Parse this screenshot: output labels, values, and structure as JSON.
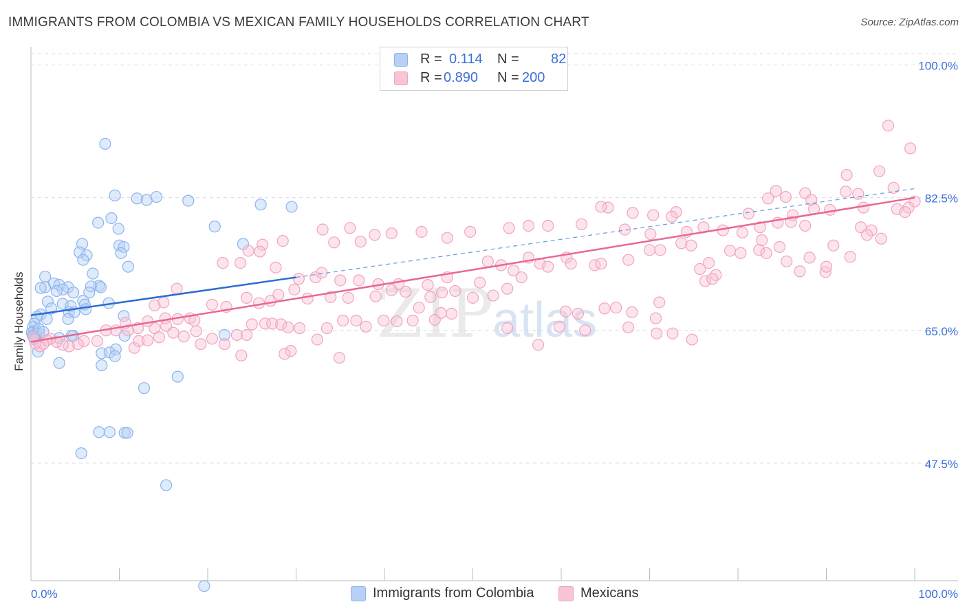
{
  "title": "IMMIGRANTS FROM COLOMBIA VS MEXICAN FAMILY HOUSEHOLDS CORRELATION CHART",
  "source": "Source: ZipAtlas.com",
  "watermark": {
    "zip": "ZIP",
    "atlas": "atlas"
  },
  "legend": {
    "r_label": "R =",
    "n_label": "N =",
    "series": [
      {
        "name": "Immigrants from Colombia",
        "r": "0.114",
        "n": "82",
        "color": "#8ab4f0",
        "fill": "#b8d0f5",
        "line": "#2a6dd3"
      },
      {
        "name": "Mexicans",
        "r": "0.890",
        "n": "200",
        "color": "#f2a3bf",
        "fill": "#f8c4d6",
        "line": "#e8688f"
      }
    ]
  },
  "chart_data": {
    "type": "scatter",
    "title": "IMMIGRANTS FROM COLOMBIA VS MEXICAN FAMILY HOUSEHOLDS CORRELATION CHART",
    "xlabel": "",
    "ylabel": "Family Households",
    "xlim": [
      0,
      100
    ],
    "ylim": [
      32,
      101.5
    ],
    "x_tick_labels": [
      "0.0%",
      "100.0%"
    ],
    "y_ticks": [
      47.5,
      65.0,
      82.5,
      100.0
    ],
    "y_tick_labels": [
      "47.5%",
      "65.0%",
      "82.5%",
      "100.0%"
    ],
    "grid": true,
    "series": [
      {
        "name": "Immigrants from Colombia",
        "r": 0.114,
        "n": 82,
        "trend": {
          "x0": 0,
          "y0": 67.0,
          "x1": 30,
          "y1": 72.0,
          "dash_x1": 100,
          "dash_y1": 83.7
        },
        "points": [
          [
            8.4,
            89.6
          ],
          [
            9.5,
            82.8
          ],
          [
            12.0,
            82.4
          ],
          [
            13.1,
            82.2
          ],
          [
            14.2,
            82.6
          ],
          [
            17.8,
            82.1
          ],
          [
            26.0,
            81.6
          ],
          [
            29.5,
            81.3
          ],
          [
            20.8,
            78.7
          ],
          [
            9.1,
            79.8
          ],
          [
            7.6,
            79.2
          ],
          [
            9.9,
            78.4
          ],
          [
            5.8,
            76.4
          ],
          [
            10.0,
            76.2
          ],
          [
            10.5,
            76.0
          ],
          [
            5.5,
            75.3
          ],
          [
            10.2,
            75.2
          ],
          [
            6.3,
            74.9
          ],
          [
            5.9,
            74.3
          ],
          [
            11.0,
            73.4
          ],
          [
            24.0,
            76.4
          ],
          [
            7.0,
            72.5
          ],
          [
            1.6,
            72.1
          ],
          [
            2.6,
            71.2
          ],
          [
            3.2,
            71.0
          ],
          [
            7.7,
            70.9
          ],
          [
            6.8,
            70.8
          ],
          [
            1.6,
            70.7
          ],
          [
            1.1,
            70.6
          ],
          [
            4.2,
            70.7
          ],
          [
            3.6,
            70.4
          ],
          [
            7.9,
            70.7
          ],
          [
            2.9,
            70.2
          ],
          [
            4.8,
            70.0
          ],
          [
            6.6,
            70.0
          ],
          [
            5.9,
            68.9
          ],
          [
            1.9,
            68.8
          ],
          [
            3.6,
            68.5
          ],
          [
            6.1,
            68.4
          ],
          [
            4.5,
            68.2
          ],
          [
            2.3,
            67.9
          ],
          [
            6.2,
            67.8
          ],
          [
            4.3,
            67.4
          ],
          [
            1.1,
            67.1
          ],
          [
            0.7,
            66.8
          ],
          [
            4.9,
            67.4
          ],
          [
            8.8,
            68.6
          ],
          [
            1.8,
            66.5
          ],
          [
            4.2,
            66.5
          ],
          [
            10.5,
            66.9
          ],
          [
            0.4,
            65.9
          ],
          [
            0.2,
            65.4
          ],
          [
            0.3,
            64.9
          ],
          [
            0.1,
            64.7
          ],
          [
            0.6,
            64.6
          ],
          [
            0.9,
            64.6
          ],
          [
            0.2,
            64.3
          ],
          [
            4.8,
            64.3
          ],
          [
            0.5,
            64.0
          ],
          [
            3.2,
            64.0
          ],
          [
            4.6,
            64.3
          ],
          [
            21.9,
            64.4
          ],
          [
            10.6,
            64.3
          ],
          [
            0.4,
            63.8
          ],
          [
            0.8,
            62.2
          ],
          [
            9.6,
            62.5
          ],
          [
            8.0,
            62.0
          ],
          [
            8.9,
            62.1
          ],
          [
            9.5,
            61.6
          ],
          [
            3.2,
            60.7
          ],
          [
            8.0,
            60.4
          ],
          [
            16.6,
            58.9
          ],
          [
            12.8,
            57.4
          ],
          [
            7.7,
            51.6
          ],
          [
            8.9,
            51.6
          ],
          [
            10.6,
            51.5
          ],
          [
            10.9,
            51.5
          ],
          [
            5.7,
            48.8
          ],
          [
            15.3,
            44.6
          ],
          [
            19.6,
            31.3
          ],
          [
            0.9,
            65.2
          ],
          [
            1.4,
            64.8
          ]
        ]
      },
      {
        "name": "Mexicans",
        "r": 0.89,
        "n": 200,
        "trend": {
          "x0": 0,
          "y0": 63.5,
          "x1": 100,
          "y1": 82.5
        },
        "points": [
          [
            97.0,
            92.0
          ],
          [
            99.5,
            89.0
          ],
          [
            96.0,
            86.0
          ],
          [
            92.3,
            85.5
          ],
          [
            97.6,
            83.8
          ],
          [
            92.2,
            83.3
          ],
          [
            93.6,
            83.0
          ],
          [
            100.0,
            82.0
          ],
          [
            98.0,
            81.0
          ],
          [
            94.2,
            81.2
          ],
          [
            99.3,
            81.2
          ],
          [
            98.9,
            80.6
          ],
          [
            87.6,
            83.1
          ],
          [
            84.3,
            83.4
          ],
          [
            85.4,
            82.6
          ],
          [
            83.4,
            82.4
          ],
          [
            88.3,
            82.2
          ],
          [
            88.6,
            81.0
          ],
          [
            90.4,
            80.9
          ],
          [
            86.2,
            80.2
          ],
          [
            84.5,
            79.2
          ],
          [
            86.0,
            79.3
          ],
          [
            87.6,
            78.8
          ],
          [
            93.9,
            78.6
          ],
          [
            95.1,
            78.2
          ],
          [
            94.6,
            77.6
          ],
          [
            96.2,
            77.1
          ],
          [
            81.2,
            80.4
          ],
          [
            80.5,
            77.9
          ],
          [
            78.3,
            78.2
          ],
          [
            76.1,
            78.6
          ],
          [
            73.0,
            80.6
          ],
          [
            72.5,
            80.0
          ],
          [
            74.2,
            78.0
          ],
          [
            70.1,
            77.7
          ],
          [
            70.4,
            80.2
          ],
          [
            68.1,
            80.5
          ],
          [
            65.3,
            81.2
          ],
          [
            64.5,
            81.3
          ],
          [
            67.2,
            78.3
          ],
          [
            62.3,
            79.0
          ],
          [
            58.5,
            78.8
          ],
          [
            56.3,
            78.8
          ],
          [
            54.1,
            78.5
          ],
          [
            49.7,
            78.0
          ],
          [
            47.1,
            77.2
          ],
          [
            44.2,
            78.0
          ],
          [
            40.8,
            77.8
          ],
          [
            38.9,
            77.6
          ],
          [
            36.1,
            78.5
          ],
          [
            37.3,
            76.7
          ],
          [
            34.3,
            76.6
          ],
          [
            33.0,
            78.3
          ],
          [
            28.5,
            76.8
          ],
          [
            26.2,
            76.3
          ],
          [
            25.9,
            75.4
          ],
          [
            24.6,
            75.5
          ],
          [
            21.7,
            73.9
          ],
          [
            23.7,
            73.9
          ],
          [
            27.7,
            73.3
          ],
          [
            30.3,
            71.8
          ],
          [
            32.2,
            72.0
          ],
          [
            32.9,
            72.6
          ],
          [
            35.0,
            71.6
          ],
          [
            37.1,
            71.6
          ],
          [
            39.3,
            71.1
          ],
          [
            41.6,
            71.1
          ],
          [
            44.9,
            71.0
          ],
          [
            47.1,
            72.0
          ],
          [
            48.0,
            70.2
          ],
          [
            50.8,
            71.3
          ],
          [
            51.7,
            74.1
          ],
          [
            53.2,
            73.6
          ],
          [
            54.6,
            72.9
          ],
          [
            56.3,
            74.6
          ],
          [
            57.6,
            73.8
          ],
          [
            60.6,
            74.6
          ],
          [
            61.1,
            73.8
          ],
          [
            63.8,
            73.6
          ],
          [
            64.5,
            73.8
          ],
          [
            67.6,
            74.3
          ],
          [
            70.0,
            75.6
          ],
          [
            71.2,
            75.6
          ],
          [
            73.6,
            76.5
          ],
          [
            74.7,
            76.2
          ],
          [
            75.7,
            73.1
          ],
          [
            77.5,
            72.3
          ],
          [
            76.3,
            71.5
          ],
          [
            76.7,
            73.9
          ],
          [
            77.1,
            71.8
          ],
          [
            79.1,
            75.5
          ],
          [
            80.3,
            75.2
          ],
          [
            82.4,
            75.6
          ],
          [
            83.2,
            75.2
          ],
          [
            85.5,
            74.1
          ],
          [
            87.0,
            72.8
          ],
          [
            89.9,
            72.7
          ],
          [
            82.5,
            78.6
          ],
          [
            82.7,
            76.9
          ],
          [
            90.8,
            76.2
          ],
          [
            92.7,
            74.7
          ],
          [
            90.0,
            73.4
          ],
          [
            88.1,
            74.6
          ],
          [
            84.7,
            76.0
          ],
          [
            58.5,
            73.4
          ],
          [
            55.5,
            72.0
          ],
          [
            53.9,
            70.5
          ],
          [
            52.3,
            69.6
          ],
          [
            50.0,
            69.3
          ],
          [
            46.5,
            70.0
          ],
          [
            45.2,
            69.4
          ],
          [
            43.9,
            68.0
          ],
          [
            42.4,
            70.1
          ],
          [
            40.8,
            70.3
          ],
          [
            39.0,
            69.5
          ],
          [
            35.9,
            69.3
          ],
          [
            33.9,
            69.4
          ],
          [
            31.3,
            69.2
          ],
          [
            29.8,
            70.4
          ],
          [
            28.0,
            69.7
          ],
          [
            27.1,
            68.9
          ],
          [
            25.8,
            68.6
          ],
          [
            24.4,
            69.3
          ],
          [
            22.1,
            68.1
          ],
          [
            20.5,
            68.4
          ],
          [
            18.0,
            66.6
          ],
          [
            16.6,
            66.5
          ],
          [
            15.2,
            66.6
          ],
          [
            14.0,
            65.3
          ],
          [
            12.1,
            65.3
          ],
          [
            11.0,
            65.0
          ],
          [
            9.6,
            65.0
          ],
          [
            8.5,
            65.0
          ],
          [
            7.5,
            63.6
          ],
          [
            6.0,
            63.6
          ],
          [
            5.3,
            63.2
          ],
          [
            4.3,
            62.9
          ],
          [
            3.6,
            63.1
          ],
          [
            2.9,
            63.5
          ],
          [
            2.2,
            63.9
          ],
          [
            1.8,
            63.7
          ],
          [
            1.4,
            63.2
          ],
          [
            1.0,
            62.9
          ],
          [
            0.5,
            63.3
          ],
          [
            0.3,
            64.1
          ],
          [
            11.7,
            62.7
          ],
          [
            12.2,
            63.6
          ],
          [
            13.2,
            63.7
          ],
          [
            14.5,
            64.1
          ],
          [
            15.3,
            65.6
          ],
          [
            16.1,
            64.7
          ],
          [
            17.3,
            64.2
          ],
          [
            18.7,
            64.9
          ],
          [
            19.2,
            63.2
          ],
          [
            20.5,
            63.9
          ],
          [
            21.9,
            63.2
          ],
          [
            23.3,
            64.4
          ],
          [
            24.4,
            64.4
          ],
          [
            25.0,
            65.8
          ],
          [
            26.5,
            65.9
          ],
          [
            27.3,
            65.9
          ],
          [
            28.3,
            65.8
          ],
          [
            29.1,
            65.4
          ],
          [
            30.4,
            65.3
          ],
          [
            32.4,
            63.8
          ],
          [
            33.5,
            65.3
          ],
          [
            35.3,
            66.3
          ],
          [
            36.8,
            66.3
          ],
          [
            37.9,
            65.5
          ],
          [
            39.9,
            66.3
          ],
          [
            41.4,
            66.2
          ],
          [
            43.2,
            66.3
          ],
          [
            45.7,
            66.4
          ],
          [
            53.9,
            65.3
          ],
          [
            57.4,
            63.1
          ],
          [
            59.8,
            65.5
          ],
          [
            62.7,
            65.0
          ],
          [
            67.6,
            65.4
          ],
          [
            70.8,
            64.6
          ],
          [
            72.6,
            64.6
          ],
          [
            74.8,
            63.8
          ],
          [
            46.4,
            67.3
          ],
          [
            47.6,
            67.2
          ],
          [
            60.5,
            67.5
          ],
          [
            61.9,
            67.2
          ],
          [
            64.9,
            67.9
          ],
          [
            66.2,
            68.0
          ],
          [
            68.0,
            67.4
          ],
          [
            71.1,
            68.7
          ],
          [
            70.7,
            66.6
          ],
          [
            16.5,
            70.5
          ],
          [
            15.0,
            68.7
          ],
          [
            18.5,
            66.3
          ],
          [
            13.2,
            66.2
          ],
          [
            10.7,
            66.0
          ],
          [
            14.0,
            68.3
          ],
          [
            29.4,
            62.3
          ],
          [
            28.7,
            61.9
          ],
          [
            34.9,
            61.4
          ],
          [
            23.8,
            61.7
          ]
        ]
      }
    ]
  }
}
